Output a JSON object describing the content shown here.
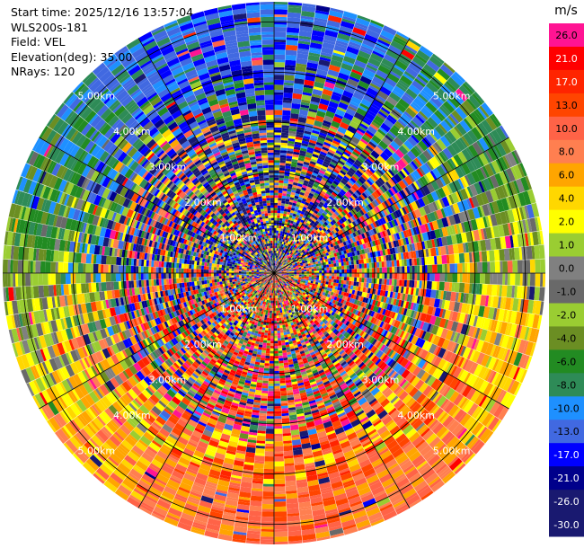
{
  "header": {
    "start_time": "Start time: 2025/12/16 13:57:04",
    "instrument": "WLS200s-181",
    "field": "Field: VEL",
    "elevation": "Elevation(deg): 35.00",
    "nrays": "NRays: 120"
  },
  "chart_data": {
    "type": "heatmap",
    "projection": "polar-ppi",
    "rays": 120,
    "range_km_max": 5.4,
    "range_rings_km": [
      1,
      2,
      3,
      4,
      5
    ],
    "range_labels": [
      "1.00km",
      "2.00km",
      "3.00km",
      "4.00km",
      "5.00km"
    ],
    "colorbar": {
      "unit": "m/s",
      "ticks": [
        "26.0",
        "21.0",
        "17.0",
        "13.0",
        "10.0",
        "8.0",
        "6.0",
        "4.0",
        "2.0",
        "1.0",
        "0.0",
        "-1.0",
        "-2.0",
        "-4.0",
        "-6.0",
        "-8.0",
        "-10.0",
        "-13.0",
        "-17.0",
        "-21.0",
        "-26.0",
        "-30.0"
      ],
      "colors": [
        "#ff1493",
        "#ff0000",
        "#ff2400",
        "#ff4500",
        "#ff6347",
        "#ff7f50",
        "#ffa500",
        "#ffd700",
        "#ffff00",
        "#9acd32",
        "#808080",
        "#696969",
        "#9acd32",
        "#6b8e23",
        "#228b22",
        "#2e8b57",
        "#1e90ff",
        "#4169e1",
        "#0000ff",
        "#00008b",
        "#191970",
        "#191970"
      ]
    }
  }
}
